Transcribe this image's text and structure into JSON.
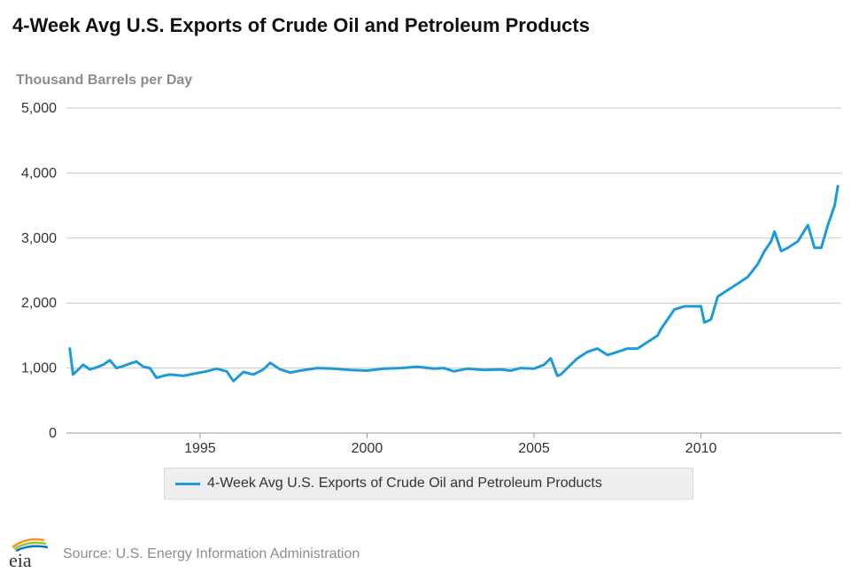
{
  "chart_data": {
    "type": "line",
    "title": "4-Week Avg U.S. Exports of Crude Oil and Petroleum Products",
    "ylabel": "Thousand Barrels per Day",
    "xlabel": "",
    "ylim": [
      0,
      5000
    ],
    "xlim": [
      1991.0,
      2014.2
    ],
    "y_ticks": [
      0,
      1000,
      2000,
      3000,
      4000,
      5000
    ],
    "y_tick_labels": [
      "0",
      "1,000",
      "2,000",
      "3,000",
      "4,000",
      "5,000"
    ],
    "x_ticks": [
      1995,
      2000,
      2005,
      2010
    ],
    "x_tick_labels": [
      "1995",
      "2000",
      "2005",
      "2010"
    ],
    "grid": true,
    "legend_position": "bottom-center",
    "series": [
      {
        "name": "4-Week Avg U.S. Exports of Crude Oil and Petroleum Products",
        "color": "#1e9ad6",
        "x": [
          1991.1,
          1991.2,
          1991.3,
          1991.5,
          1991.7,
          1991.9,
          1992.1,
          1992.3,
          1992.5,
          1992.7,
          1992.9,
          1993.1,
          1993.3,
          1993.5,
          1993.7,
          1993.9,
          1994.1,
          1994.5,
          1995.0,
          1995.2,
          1995.5,
          1995.8,
          1996.0,
          1996.3,
          1996.6,
          1996.9,
          1997.1,
          1997.4,
          1997.7,
          1998.0,
          1998.5,
          1999.0,
          1999.5,
          2000.0,
          2000.5,
          2001.0,
          2001.5,
          2002.0,
          2002.3,
          2002.6,
          2003.0,
          2003.5,
          2004.0,
          2004.3,
          2004.6,
          2005.0,
          2005.3,
          2005.5,
          2005.7,
          2005.8,
          2006.0,
          2006.3,
          2006.6,
          2006.9,
          2007.2,
          2007.5,
          2007.8,
          2008.1,
          2008.4,
          2008.7,
          2008.8,
          2009.0,
          2009.2,
          2009.5,
          2009.8,
          2010.0,
          2010.1,
          2010.3,
          2010.5,
          2010.8,
          2011.1,
          2011.4,
          2011.7,
          2011.9,
          2012.1,
          2012.2,
          2012.4,
          2012.6,
          2012.9,
          2013.2,
          2013.4,
          2013.6,
          2013.8,
          2014.0,
          2014.1
        ],
        "values": [
          1300,
          900,
          950,
          1050,
          980,
          1010,
          1050,
          1120,
          1000,
          1030,
          1070,
          1100,
          1020,
          1000,
          850,
          880,
          900,
          880,
          930,
          950,
          990,
          950,
          800,
          940,
          900,
          980,
          1080,
          980,
          930,
          960,
          1000,
          990,
          970,
          960,
          990,
          1000,
          1020,
          990,
          1000,
          950,
          990,
          970,
          980,
          960,
          1000,
          990,
          1050,
          1150,
          880,
          900,
          1000,
          1150,
          1250,
          1300,
          1200,
          1250,
          1300,
          1300,
          1400,
          1500,
          1600,
          1750,
          1900,
          1950,
          1950,
          1950,
          1700,
          1750,
          2100,
          2200,
          2300,
          2400,
          2600,
          2800,
          2950,
          3100,
          2800,
          2850,
          2950,
          3200,
          2850,
          2850,
          3200,
          3500,
          3800
        ]
      }
    ]
  },
  "legend": {
    "label": "4-Week Avg U.S. Exports of Crude Oil and Petroleum Products"
  },
  "footer": {
    "logo_text": "eia",
    "source": "Source: U.S. Energy Information Administration",
    "logo_colors": [
      "#0a75b9",
      "#8dc63f",
      "#f7941d"
    ]
  }
}
